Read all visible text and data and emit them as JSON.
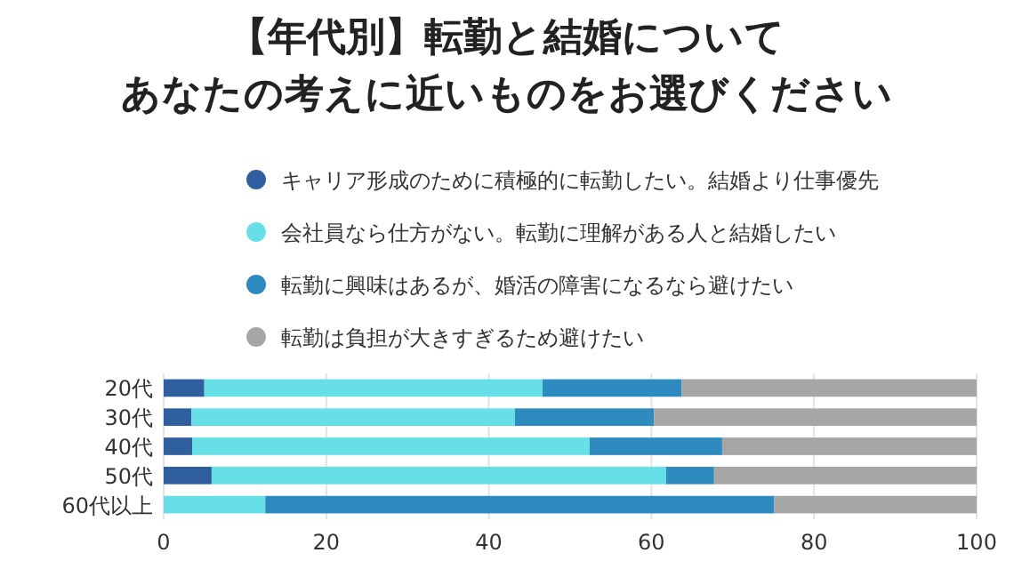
{
  "chart_data": {
    "type": "bar",
    "orientation": "horizontal",
    "stacked": true,
    "title": "【年代別】転勤と結婚について",
    "subtitle": "あなたの考えに近いものをお選びください",
    "categories": [
      "20代",
      "30代",
      "40代",
      "50代",
      "60代以上"
    ],
    "series": [
      {
        "name": "キャリア形成のために積極的に転勤したい。結婚より仕事優先",
        "color": "#2f5f9e",
        "values": [
          5.0,
          3.4,
          3.5,
          5.9,
          0
        ]
      },
      {
        "name": "会社員なら仕方がない。転勤に理解がある人と結婚したい",
        "color": "#66e0e6",
        "values": [
          41.6,
          39.8,
          48.9,
          55.9,
          12.5
        ]
      },
      {
        "name": "転勤に興味はあるが、婚活の障害になるなら避けたい",
        "color": "#2e8bc0",
        "values": [
          17.1,
          17.1,
          16.3,
          5.9,
          62.6
        ]
      },
      {
        "name": "転勤は負担が大きすぎるため避けたい",
        "color": "#a6a6a6",
        "values": [
          36.3,
          39.7,
          31.3,
          32.3,
          24.9
        ]
      }
    ],
    "xlim": [
      0,
      100
    ],
    "xticks": [
      0,
      20,
      40,
      60,
      80,
      100
    ],
    "grid": "x",
    "legend": "top"
  }
}
